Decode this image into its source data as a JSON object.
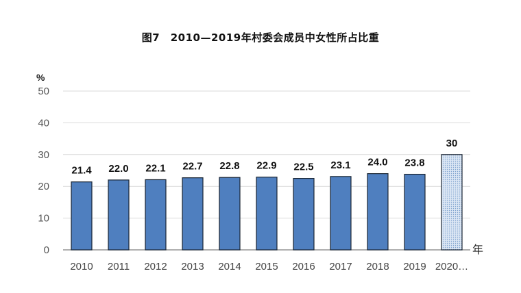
{
  "chart_data": {
    "type": "bar",
    "title": "图7　2010—2019年村委会成员中女性所占比重",
    "ylabel": "%",
    "xlabel": "年",
    "ylim": [
      0,
      50
    ],
    "yticks": [
      "0",
      "10",
      "20",
      "30",
      "40",
      "50"
    ],
    "grid": true,
    "categories": [
      "2010",
      "2011",
      "2012",
      "2013",
      "2014",
      "2015",
      "2016",
      "2017",
      "2018",
      "2019",
      "2020…"
    ],
    "values": [
      21.4,
      22.0,
      22.1,
      22.7,
      22.8,
      22.9,
      22.5,
      23.1,
      24.0,
      23.8,
      30
    ],
    "value_labels": [
      "21.4",
      "22.0",
      "22.1",
      "22.7",
      "22.8",
      "22.9",
      "22.5",
      "23.1",
      "24.0",
      "23.8",
      "30"
    ],
    "bar_style": [
      "solid",
      "solid",
      "solid",
      "solid",
      "solid",
      "solid",
      "solid",
      "solid",
      "solid",
      "solid",
      "dotted"
    ],
    "colors": {
      "bar": "#4f7fbf",
      "bar_border": "#1a2533",
      "target_fill": "#dbe6f4",
      "grid": "#d9d9d9",
      "axis": "#7f7f7f"
    }
  }
}
